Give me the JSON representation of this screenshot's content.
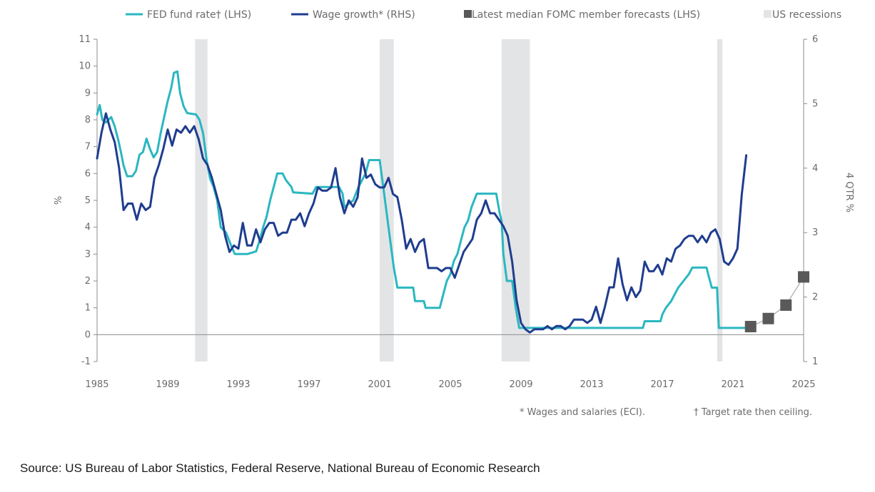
{
  "chart_data": {
    "type": "line",
    "legend": {
      "position": "top",
      "items": [
        {
          "label": "FED fund rate† (LHS)",
          "kind": "line",
          "color": "#2ab7c0"
        },
        {
          "label": "Wage growth* (RHS)",
          "kind": "line",
          "color": "#1f3d8f"
        },
        {
          "label": "Latest  median FOMC member forecasts (LHS)",
          "kind": "square",
          "color": "#595959"
        },
        {
          "label": "US recessions",
          "kind": "square",
          "color": "#e3e4e6"
        }
      ]
    },
    "x_axis": {
      "min": 1985,
      "max": 2025,
      "ticks": [
        "1985",
        "1989",
        "1993",
        "1997",
        "2001",
        "2005",
        "2009",
        "2013",
        "2017",
        "2021",
        "2025"
      ]
    },
    "y_left": {
      "label": "%",
      "min": -1,
      "max": 11,
      "ticks": [
        "-1",
        "0",
        "1",
        "2",
        "3",
        "4",
        "5",
        "6",
        "7",
        "8",
        "9",
        "10",
        "11"
      ]
    },
    "y_right": {
      "label": "4 QTR %",
      "min": 1,
      "max": 6,
      "ticks": [
        "1",
        "2",
        "3",
        "4",
        "5",
        "6"
      ]
    },
    "grid": false,
    "recessions": [
      [
        1990.55,
        1991.25
      ],
      [
        2001.0,
        2001.8
      ],
      [
        2007.9,
        2009.5
      ],
      [
        2020.1,
        2020.4
      ]
    ],
    "series": [
      {
        "name": "FED fund rate† (LHS)",
        "axis": "left",
        "color": "#2ab7c0",
        "points": [
          [
            1985.0,
            8.2
          ],
          [
            1985.15,
            8.55
          ],
          [
            1985.3,
            8.0
          ],
          [
            1985.5,
            7.9
          ],
          [
            1985.8,
            8.1
          ],
          [
            1986.0,
            7.75
          ],
          [
            1986.2,
            7.25
          ],
          [
            1986.35,
            6.8
          ],
          [
            1986.5,
            6.3
          ],
          [
            1986.7,
            5.9
          ],
          [
            1987.0,
            5.9
          ],
          [
            1987.2,
            6.1
          ],
          [
            1987.4,
            6.7
          ],
          [
            1987.6,
            6.8
          ],
          [
            1987.8,
            7.3
          ],
          [
            1988.0,
            6.9
          ],
          [
            1988.2,
            6.6
          ],
          [
            1988.4,
            6.8
          ],
          [
            1988.6,
            7.5
          ],
          [
            1988.8,
            8.1
          ],
          [
            1989.0,
            8.7
          ],
          [
            1989.2,
            9.2
          ],
          [
            1989.35,
            9.75
          ],
          [
            1989.55,
            9.8
          ],
          [
            1989.7,
            9.0
          ],
          [
            1989.9,
            8.5
          ],
          [
            1990.1,
            8.25
          ],
          [
            1990.6,
            8.2
          ],
          [
            1990.8,
            8.0
          ],
          [
            1991.0,
            7.5
          ],
          [
            1991.2,
            6.5
          ],
          [
            1991.4,
            5.8
          ],
          [
            1991.6,
            5.5
          ],
          [
            1991.8,
            5.0
          ],
          [
            1992.0,
            4.0
          ],
          [
            1992.3,
            3.8
          ],
          [
            1992.6,
            3.3
          ],
          [
            1992.8,
            3.0
          ],
          [
            1993.5,
            3.0
          ],
          [
            1994.0,
            3.1
          ],
          [
            1994.2,
            3.5
          ],
          [
            1994.4,
            4.0
          ],
          [
            1994.6,
            4.4
          ],
          [
            1994.8,
            5.0
          ],
          [
            1995.0,
            5.5
          ],
          [
            1995.2,
            6.0
          ],
          [
            1995.5,
            6.0
          ],
          [
            1995.7,
            5.75
          ],
          [
            1996.0,
            5.5
          ],
          [
            1996.1,
            5.3
          ],
          [
            1997.2,
            5.25
          ],
          [
            1997.4,
            5.5
          ],
          [
            1998.7,
            5.5
          ],
          [
            1998.9,
            5.25
          ],
          [
            1999.0,
            4.75
          ],
          [
            1999.5,
            5.0
          ],
          [
            1999.8,
            5.5
          ],
          [
            2000.0,
            5.75
          ],
          [
            2000.2,
            6.0
          ],
          [
            2000.4,
            6.5
          ],
          [
            2001.0,
            6.5
          ],
          [
            2001.2,
            5.5
          ],
          [
            2001.4,
            4.5
          ],
          [
            2001.6,
            3.5
          ],
          [
            2001.8,
            2.5
          ],
          [
            2002.0,
            1.75
          ],
          [
            2002.9,
            1.75
          ],
          [
            2003.0,
            1.25
          ],
          [
            2003.5,
            1.25
          ],
          [
            2003.6,
            1.0
          ],
          [
            2004.4,
            1.0
          ],
          [
            2004.6,
            1.5
          ],
          [
            2004.8,
            2.0
          ],
          [
            2005.0,
            2.25
          ],
          [
            2005.2,
            2.75
          ],
          [
            2005.4,
            3.0
          ],
          [
            2005.6,
            3.5
          ],
          [
            2005.8,
            4.0
          ],
          [
            2006.0,
            4.25
          ],
          [
            2006.2,
            4.75
          ],
          [
            2006.5,
            5.25
          ],
          [
            2007.6,
            5.25
          ],
          [
            2007.8,
            4.5
          ],
          [
            2007.9,
            4.25
          ],
          [
            2008.0,
            3.0
          ],
          [
            2008.2,
            2.0
          ],
          [
            2008.5,
            2.0
          ],
          [
            2008.7,
            1.0
          ],
          [
            2008.9,
            0.25
          ],
          [
            2015.9,
            0.25
          ],
          [
            2016.0,
            0.5
          ],
          [
            2016.9,
            0.5
          ],
          [
            2017.0,
            0.75
          ],
          [
            2017.2,
            1.0
          ],
          [
            2017.5,
            1.25
          ],
          [
            2017.7,
            1.5
          ],
          [
            2017.9,
            1.75
          ],
          [
            2018.2,
            2.0
          ],
          [
            2018.5,
            2.25
          ],
          [
            2018.7,
            2.5
          ],
          [
            2019.5,
            2.5
          ],
          [
            2019.6,
            2.25
          ],
          [
            2019.7,
            2.0
          ],
          [
            2019.8,
            1.75
          ],
          [
            2020.1,
            1.75
          ],
          [
            2020.2,
            0.25
          ],
          [
            2022.0,
            0.25
          ]
        ]
      },
      {
        "name": "Wage growth* (RHS)",
        "axis": "right",
        "color": "#1f3d8f",
        "points": [
          [
            1985.0,
            4.15
          ],
          [
            1985.25,
            4.55
          ],
          [
            1985.5,
            4.85
          ],
          [
            1985.75,
            4.6
          ],
          [
            1986.0,
            4.4
          ],
          [
            1986.25,
            4.0
          ],
          [
            1986.5,
            3.35
          ],
          [
            1986.75,
            3.45
          ],
          [
            1987.0,
            3.45
          ],
          [
            1987.25,
            3.2
          ],
          [
            1987.5,
            3.45
          ],
          [
            1987.75,
            3.35
          ],
          [
            1988.0,
            3.4
          ],
          [
            1988.25,
            3.85
          ],
          [
            1988.5,
            4.05
          ],
          [
            1988.75,
            4.3
          ],
          [
            1989.0,
            4.6
          ],
          [
            1989.25,
            4.35
          ],
          [
            1989.5,
            4.6
          ],
          [
            1989.75,
            4.55
          ],
          [
            1990.0,
            4.65
          ],
          [
            1990.25,
            4.55
          ],
          [
            1990.5,
            4.65
          ],
          [
            1990.75,
            4.45
          ],
          [
            1991.0,
            4.15
          ],
          [
            1991.25,
            4.05
          ],
          [
            1991.5,
            3.85
          ],
          [
            1991.75,
            3.6
          ],
          [
            1992.0,
            3.35
          ],
          [
            1992.25,
            2.95
          ],
          [
            1992.5,
            2.7
          ],
          [
            1992.75,
            2.8
          ],
          [
            1993.0,
            2.75
          ],
          [
            1993.25,
            3.15
          ],
          [
            1993.5,
            2.8
          ],
          [
            1993.75,
            2.8
          ],
          [
            1994.0,
            3.05
          ],
          [
            1994.25,
            2.85
          ],
          [
            1994.5,
            3.05
          ],
          [
            1994.75,
            3.15
          ],
          [
            1995.0,
            3.15
          ],
          [
            1995.25,
            2.95
          ],
          [
            1995.5,
            3.0
          ],
          [
            1995.75,
            3.0
          ],
          [
            1996.0,
            3.2
          ],
          [
            1996.25,
            3.2
          ],
          [
            1996.5,
            3.3
          ],
          [
            1996.75,
            3.1
          ],
          [
            1997.0,
            3.3
          ],
          [
            1997.25,
            3.45
          ],
          [
            1997.5,
            3.7
          ],
          [
            1997.75,
            3.65
          ],
          [
            1998.0,
            3.65
          ],
          [
            1998.25,
            3.7
          ],
          [
            1998.5,
            4.0
          ],
          [
            1998.75,
            3.55
          ],
          [
            1999.0,
            3.3
          ],
          [
            1999.25,
            3.5
          ],
          [
            1999.5,
            3.4
          ],
          [
            1999.75,
            3.55
          ],
          [
            2000.0,
            4.15
          ],
          [
            2000.25,
            3.85
          ],
          [
            2000.5,
            3.9
          ],
          [
            2000.75,
            3.75
          ],
          [
            2001.0,
            3.7
          ],
          [
            2001.25,
            3.7
          ],
          [
            2001.5,
            3.85
          ],
          [
            2001.75,
            3.6
          ],
          [
            2002.0,
            3.55
          ],
          [
            2002.25,
            3.2
          ],
          [
            2002.5,
            2.75
          ],
          [
            2002.75,
            2.9
          ],
          [
            2003.0,
            2.7
          ],
          [
            2003.25,
            2.85
          ],
          [
            2003.5,
            2.9
          ],
          [
            2003.75,
            2.45
          ],
          [
            2004.0,
            2.45
          ],
          [
            2004.25,
            2.45
          ],
          [
            2004.5,
            2.4
          ],
          [
            2004.75,
            2.45
          ],
          [
            2005.0,
            2.45
          ],
          [
            2005.25,
            2.3
          ],
          [
            2005.5,
            2.5
          ],
          [
            2005.75,
            2.7
          ],
          [
            2006.0,
            2.8
          ],
          [
            2006.25,
            2.9
          ],
          [
            2006.5,
            3.2
          ],
          [
            2006.75,
            3.3
          ],
          [
            2007.0,
            3.5
          ],
          [
            2007.25,
            3.3
          ],
          [
            2007.5,
            3.3
          ],
          [
            2007.75,
            3.2
          ],
          [
            2008.0,
            3.1
          ],
          [
            2008.25,
            2.95
          ],
          [
            2008.5,
            2.55
          ],
          [
            2008.75,
            1.95
          ],
          [
            2009.0,
            1.6
          ],
          [
            2009.25,
            1.5
          ],
          [
            2009.5,
            1.45
          ],
          [
            2009.75,
            1.5
          ],
          [
            2010.0,
            1.5
          ],
          [
            2010.25,
            1.5
          ],
          [
            2010.5,
            1.55
          ],
          [
            2010.75,
            1.5
          ],
          [
            2011.0,
            1.55
          ],
          [
            2011.25,
            1.55
          ],
          [
            2011.5,
            1.5
          ],
          [
            2011.75,
            1.55
          ],
          [
            2012.0,
            1.65
          ],
          [
            2012.25,
            1.65
          ],
          [
            2012.5,
            1.65
          ],
          [
            2012.75,
            1.6
          ],
          [
            2013.0,
            1.65
          ],
          [
            2013.25,
            1.85
          ],
          [
            2013.5,
            1.6
          ],
          [
            2013.75,
            1.85
          ],
          [
            2014.0,
            2.15
          ],
          [
            2014.25,
            2.15
          ],
          [
            2014.5,
            2.6
          ],
          [
            2014.75,
            2.2
          ],
          [
            2015.0,
            1.95
          ],
          [
            2015.25,
            2.15
          ],
          [
            2015.5,
            2.0
          ],
          [
            2015.75,
            2.1
          ],
          [
            2016.0,
            2.55
          ],
          [
            2016.25,
            2.4
          ],
          [
            2016.5,
            2.4
          ],
          [
            2016.75,
            2.5
          ],
          [
            2017.0,
            2.35
          ],
          [
            2017.25,
            2.6
          ],
          [
            2017.5,
            2.55
          ],
          [
            2017.75,
            2.75
          ],
          [
            2018.0,
            2.8
          ],
          [
            2018.25,
            2.9
          ],
          [
            2018.5,
            2.95
          ],
          [
            2018.75,
            2.95
          ],
          [
            2019.0,
            2.85
          ],
          [
            2019.25,
            2.95
          ],
          [
            2019.5,
            2.85
          ],
          [
            2019.75,
            3.0
          ],
          [
            2020.0,
            3.05
          ],
          [
            2020.25,
            2.9
          ],
          [
            2020.5,
            2.55
          ],
          [
            2020.75,
            2.5
          ],
          [
            2021.0,
            2.6
          ],
          [
            2021.25,
            2.75
          ],
          [
            2021.5,
            3.6
          ],
          [
            2021.75,
            4.2
          ]
        ]
      }
    ],
    "forecasts": {
      "name": "Latest  median FOMC member forecasts (LHS)",
      "axis": "left",
      "color": "#595959",
      "points": [
        [
          2022,
          0.3
        ],
        [
          2023,
          0.6
        ],
        [
          2024,
          1.1
        ],
        [
          2025,
          2.15
        ]
      ]
    }
  },
  "notes": {
    "wages": "* Wages and salaries (ECI).",
    "target": "† Target rate then ceiling."
  },
  "source": "Source: US Bureau of Labor Statistics, Federal Reserve, National Bureau of Economic Research"
}
